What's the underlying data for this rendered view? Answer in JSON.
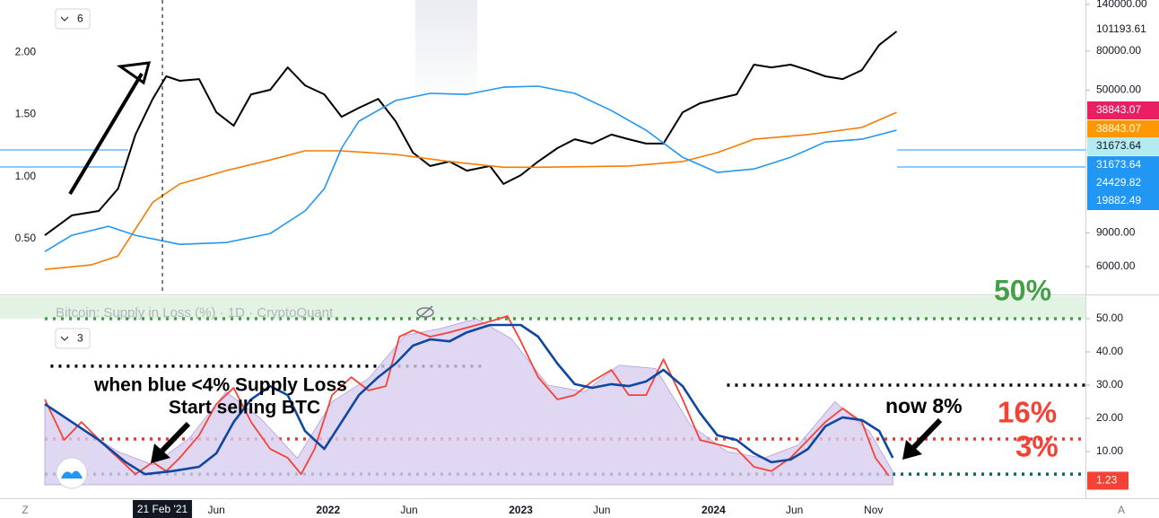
{
  "chart_data": [
    {
      "type": "line",
      "xlim": [
        2020.53,
        2025.93
      ],
      "ylim": [
        0.06,
        2.42
      ],
      "yticks": [
        {
          "value": 0.5,
          "label": "0.50"
        },
        {
          "value": 1,
          "label": "1.00"
        },
        {
          "value": 1.5,
          "label": "1.50"
        },
        {
          "value": 2,
          "label": "2.00"
        }
      ],
      "y2lim": [
        4340,
        147600
      ],
      "y2_log": true,
      "y2ticks": [
        {
          "value": 140000,
          "label": "140000.00"
        },
        {
          "value": 80000,
          "label": "80000.00"
        },
        {
          "value": 50000,
          "label": "50000.00"
        },
        {
          "value": 9000,
          "label": "9000.00"
        },
        {
          "value": 6000,
          "label": "6000.00"
        }
      ],
      "price_tags": [
        {
          "value": 101193.61,
          "bg": "#ffffff",
          "fg": "#131722"
        },
        {
          "value": 38843.07,
          "bg": "#e91e63",
          "fg": "#ffffff"
        },
        {
          "value": 38843.07,
          "bg": "#ff9800",
          "fg": "#ffffff"
        },
        {
          "value": 31673.64,
          "bg": "#b2ebf2",
          "fg": "#131722"
        },
        {
          "value": 31673.64,
          "bg": "#2196f3",
          "fg": "#ffffff"
        },
        {
          "value": 24429.82,
          "bg": "#2196f3",
          "fg": "#ffffff"
        },
        {
          "value": 19882.49,
          "bg": "#2196f3",
          "fg": "#ffffff"
        }
      ],
      "series": [
        {
          "color": "#000000",
          "axis": "y2",
          "width": 2,
          "x": [
            2020.53,
            2020.67,
            2020.81,
            2020.91,
            2021.0,
            2021.09,
            2021.16,
            2021.23,
            2021.33,
            2021.42,
            2021.51,
            2021.6,
            2021.7,
            2021.79,
            2021.88,
            2021.98,
            2022.07,
            2022.16,
            2022.26,
            2022.35,
            2022.44,
            2022.53,
            2022.63,
            2022.72,
            2022.84,
            2022.91,
            2023.0,
            2023.09,
            2023.19,
            2023.28,
            2023.37,
            2023.47,
            2023.56,
            2023.65,
            2023.74,
            2023.84,
            2023.93,
            2024.02,
            2024.12,
            2024.21,
            2024.3,
            2024.4,
            2024.49,
            2024.58,
            2024.67,
            2024.77,
            2024.86,
            2024.95
          ],
          "values": [
            8740,
            11100,
            11700,
            15300,
            29300,
            45000,
            59000,
            55900,
            57100,
            38300,
            32600,
            47500,
            50200,
            65700,
            52900,
            47500,
            36300,
            40400,
            45000,
            34400,
            23600,
            20100,
            21200,
            19000,
            20100,
            16200,
            18000,
            21200,
            24900,
            27700,
            26300,
            29300,
            27700,
            26300,
            26300,
            38300,
            42700,
            45000,
            47500,
            67900,
            65700,
            67900,
            63600,
            59000,
            57100,
            63600,
            86000,
            101194
          ]
        },
        {
          "color": "#f57c00",
          "axis": "y2",
          "width": 1.6,
          "x": [
            2020.53,
            2020.77,
            2020.91,
            2021.0,
            2021.09,
            2021.23,
            2021.47,
            2021.7,
            2021.88,
            2022.07,
            2022.35,
            2022.63,
            2022.91,
            2023.09,
            2023.56,
            2023.84,
            2024.02,
            2024.21,
            2024.49,
            2024.77,
            2024.95
          ],
          "values": [
            5800,
            6120,
            6820,
            9420,
            13000,
            16200,
            19000,
            21600,
            24100,
            24100,
            23100,
            21200,
            19800,
            19800,
            20100,
            21200,
            23600,
            27700,
            29300,
            31900,
            38300
          ]
        },
        {
          "color": "#2196f3",
          "axis": "y2",
          "width": 1.6,
          "x": [
            2020.53,
            2020.67,
            2020.86,
            2021.0,
            2021.23,
            2021.47,
            2021.7,
            2021.88,
            2021.98,
            2022.07,
            2022.16,
            2022.35,
            2022.53,
            2022.72,
            2022.91,
            2023.09,
            2023.28,
            2023.47,
            2023.65,
            2023.84,
            2024.02,
            2024.21,
            2024.4,
            2024.58,
            2024.77,
            2024.95
          ],
          "values": [
            7190,
            8740,
            9730,
            8740,
            7840,
            8010,
            8930,
            11700,
            15300,
            24900,
            34400,
            44100,
            48100,
            47500,
            51800,
            52400,
            48100,
            39100,
            30900,
            22300,
            18600,
            19400,
            22300,
            26800,
            27700,
            30900
          ]
        }
      ],
      "crosshair_x": 2021.14
    },
    {
      "type": "line",
      "legend": "Bitcoin: Supply in Loss (%) · 1D · CryptoQuant",
      "xlim": [
        2020.53,
        2025.93
      ],
      "ylim": [
        -4.05,
        56.76
      ],
      "yticks": [
        {
          "value": 10,
          "label": "10.00"
        },
        {
          "value": 20,
          "label": "20.00"
        },
        {
          "value": 30,
          "label": "30.00"
        },
        {
          "value": 40,
          "label": "40.00"
        },
        {
          "value": 50,
          "label": "50.00"
        }
      ],
      "value_tag": {
        "value": 1.23,
        "bg": "#f44336"
      },
      "xticks": [
        {
          "value": 2021.42,
          "label": "Jun"
        },
        2022,
        {
          "value": 2022.42,
          "label": "Jun"
        },
        2023,
        {
          "value": 2023.42,
          "label": "Jun"
        },
        2024,
        {
          "value": 2024.42,
          "label": "Jun"
        },
        {
          "value": 2024.83,
          "label": "Nov"
        }
      ],
      "crosshair": {
        "x": 2021.14,
        "label": "21 Feb '21"
      },
      "levels": [
        {
          "value": 50,
          "color": "#43a047",
          "x": [
            2020.53,
            2025.93
          ]
        },
        {
          "value": 35.7,
          "color": "#000000",
          "x": [
            2020.56,
            2022.81
          ]
        },
        {
          "value": 30,
          "color": "#000000",
          "x": [
            2024.07,
            2025.93
          ]
        },
        {
          "value": 13.8,
          "color": "#e53935",
          "x": [
            2020.53,
            2025.93
          ]
        },
        {
          "value": 3.2,
          "color": "#00695c",
          "x": [
            2020.53,
            2025.93
          ]
        }
      ],
      "series": [
        {
          "color": "#b39ddb",
          "fill": "#d8cdef",
          "width": 0.8,
          "x": [
            2020.53,
            2020.72,
            2020.91,
            2021.09,
            2021.28,
            2021.47,
            2021.65,
            2021.84,
            2022.02,
            2022.21,
            2022.4,
            2022.58,
            2022.77,
            2022.95,
            2023.14,
            2023.33,
            2023.51,
            2023.7,
            2023.88,
            2024.07,
            2024.26,
            2024.44,
            2024.63,
            2024.81,
            2024.93
          ],
          "values": [
            24,
            17,
            10,
            6,
            14,
            28,
            20,
            8,
            25,
            32,
            45,
            47,
            50,
            44,
            30,
            28,
            36,
            35,
            18,
            10,
            8,
            12,
            25,
            16,
            4
          ]
        },
        {
          "color": "#f44336",
          "width": 1.8,
          "x": [
            2020.53,
            2020.63,
            2020.72,
            2020.86,
            2021.0,
            2021.09,
            2021.16,
            2021.23,
            2021.33,
            2021.42,
            2021.51,
            2021.6,
            2021.7,
            2021.79,
            2021.86,
            2021.93,
            2022.02,
            2022.12,
            2022.21,
            2022.3,
            2022.37,
            2022.44,
            2022.53,
            2022.63,
            2022.72,
            2022.84,
            2022.93,
            2023.0,
            2023.09,
            2023.19,
            2023.28,
            2023.37,
            2023.47,
            2023.56,
            2023.65,
            2023.74,
            2023.84,
            2023.93,
            2024.02,
            2024.12,
            2024.21,
            2024.3,
            2024.4,
            2024.49,
            2024.58,
            2024.67,
            2024.77,
            2024.84,
            2024.91
          ],
          "values": [
            25.7,
            13.5,
            18.9,
            10.8,
            3.2,
            6.8,
            4.1,
            8.1,
            14.9,
            24.3,
            29.2,
            18.9,
            10.8,
            8.1,
            3.2,
            10.8,
            27.0,
            32.4,
            28.4,
            29.7,
            44.6,
            46.5,
            44.6,
            45.9,
            47.3,
            49.2,
            50.8,
            43.2,
            32.4,
            25.7,
            27.0,
            31.1,
            34.6,
            27.0,
            27.0,
            37.8,
            25.7,
            13.5,
            12.2,
            10.8,
            5.4,
            4.1,
            8.1,
            13.5,
            18.9,
            23.0,
            18.9,
            8.1,
            2.7
          ]
        },
        {
          "color": "#0d47a1",
          "width": 2.6,
          "x": [
            2020.53,
            2020.67,
            2020.81,
            2020.95,
            2021.05,
            2021.19,
            2021.33,
            2021.42,
            2021.51,
            2021.6,
            2021.7,
            2021.79,
            2021.88,
            2021.98,
            2022.07,
            2022.16,
            2022.26,
            2022.35,
            2022.44,
            2022.53,
            2022.63,
            2022.72,
            2022.84,
            2023.0,
            2023.09,
            2023.19,
            2023.28,
            2023.37,
            2023.47,
            2023.56,
            2023.65,
            2023.74,
            2023.84,
            2023.93,
            2024.02,
            2024.12,
            2024.21,
            2024.3,
            2024.4,
            2024.49,
            2024.58,
            2024.67,
            2024.77,
            2024.86,
            2024.93
          ],
          "values": [
            24.3,
            18.9,
            13.5,
            6.8,
            3.2,
            4.1,
            5.4,
            9.5,
            18.9,
            25.7,
            29.7,
            27.0,
            16.2,
            10.8,
            18.9,
            27.0,
            32.4,
            36.5,
            41.9,
            43.8,
            43.2,
            45.9,
            48.1,
            48.1,
            44.6,
            36.5,
            30.3,
            29.2,
            30.3,
            29.7,
            31.1,
            34.6,
            29.7,
            21.6,
            14.9,
            13.5,
            9.5,
            6.8,
            7.6,
            10.8,
            17.6,
            20.3,
            19.5,
            16.2,
            8.1
          ]
        }
      ],
      "annotations": [
        "when blue  <4% Supply Loss",
        "Start selling BTC",
        "now 8%",
        "16%",
        "3%",
        "50%"
      ]
    }
  ],
  "ui": {
    "top_badge": "6",
    "bottom_badge": "3",
    "left_corner": "Z",
    "right_corner": "A"
  }
}
